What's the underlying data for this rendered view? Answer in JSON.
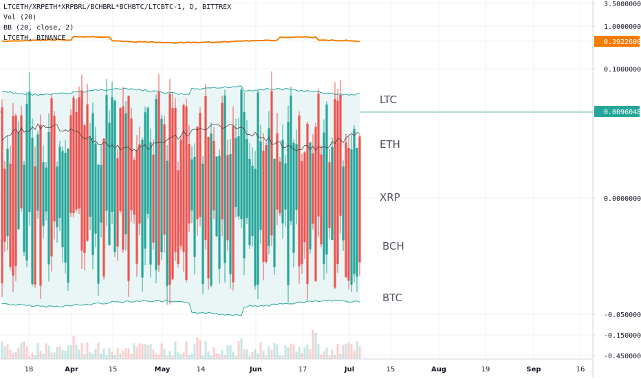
{
  "legend": {
    "symbol": "LTCETH/XRPETH*XRPBRL/BCHBRL*BCHBTC/LTCBTC-1, D, BITTREX",
    "volume": "Vol (20)",
    "bb": "BB (20, close, 2)",
    "compare": "LTCETH, BINANCE"
  },
  "colors": {
    "up": "#26a69a",
    "down": "#ef5350",
    "bb": "#26a69a",
    "bb_fill": "#e9f6f5",
    "orange": "#f57c00",
    "grid": "#eef0f3",
    "text": "#131722",
    "label": "#50535e"
  },
  "chart_data": {
    "type": "candlestick",
    "title": "LTCETH/XRPETH*XRPBRL/BCHBRL*BCHBTC/LTCBTC-1, D, BITTREX",
    "y_axis_labels": [
      "3.50000000",
      "1.00000000",
      "0.39226000",
      "0.10000000",
      "0.00960484",
      "0.00000000",
      "-0.05000000",
      "-0.15000000",
      "-0.45000000"
    ],
    "y_axis_highlight": [
      {
        "value": "0.39226000",
        "color": "#f57c00"
      },
      {
        "value": "0.00960484",
        "color": "#ffffff"
      }
    ],
    "x_axis_labels": [
      "18",
      "Apr",
      "15",
      "May",
      "14",
      "Jun",
      "17",
      "Jul",
      "15",
      "Aug",
      "19",
      "Sep",
      "16"
    ],
    "annotations": [
      "LTC",
      "ETH",
      "XRP",
      "BCH",
      "BTC"
    ],
    "last_price": "0.00960484",
    "compare_series": {
      "name": "LTCETH, BINANCE",
      "last": "0.39226000",
      "y_scale": "log"
    }
  }
}
